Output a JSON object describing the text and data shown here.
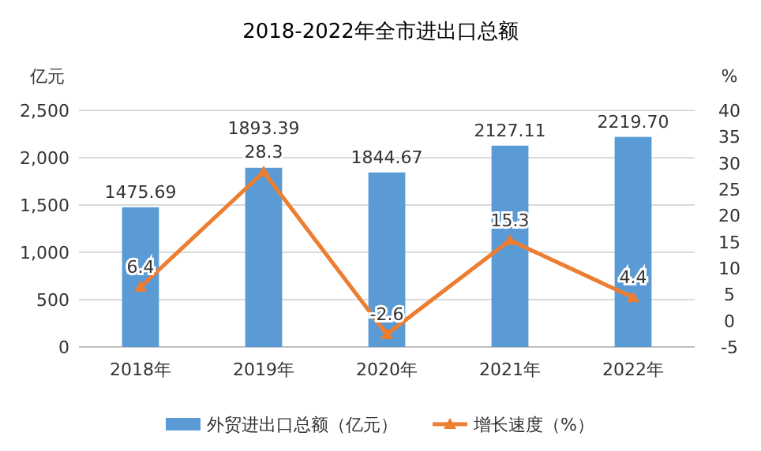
{
  "chart_data": {
    "type": "bar",
    "title": "2018-2022年全市进出口总额",
    "ylabel": "亿元",
    "y2label": "%",
    "categories": [
      "2018年",
      "2019年",
      "2020年",
      "2021年",
      "2022年"
    ],
    "series": [
      {
        "name": "外贸进出口总额（亿元）",
        "color": "#5b9bd5",
        "values": [
          1475.69,
          1893.39,
          1844.67,
          2127.11,
          2219.7
        ],
        "value_labels": [
          "1475.69",
          "1893.39",
          "1844.67",
          "2127.11",
          "2219.70"
        ]
      },
      {
        "name": "增长速度（%）",
        "type": "line",
        "axis": "y2",
        "color": "#ed7d31",
        "marker": "triangle",
        "values": [
          6.4,
          28.3,
          -2.6,
          15.3,
          4.4
        ],
        "value_labels": [
          "6.4",
          "28.3",
          "-2.6",
          "15.3",
          "4.4"
        ]
      }
    ],
    "ylim": [
      0,
      2500
    ],
    "yticks": [
      0,
      {
        "value": 500,
        "label": "500"
      },
      {
        "value": 1000,
        "label": "1,000"
      },
      {
        "value": 1500,
        "label": "1,500"
      },
      {
        "value": 2000,
        "label": "2,000"
      },
      {
        "value": 2500,
        "label": "2,500"
      }
    ],
    "y2lim": [
      -5,
      40
    ],
    "y2ticks": [
      -5,
      0,
      5,
      10,
      15,
      20,
      25,
      30,
      35,
      40
    ],
    "grid": "y",
    "legend": "bottom"
  }
}
